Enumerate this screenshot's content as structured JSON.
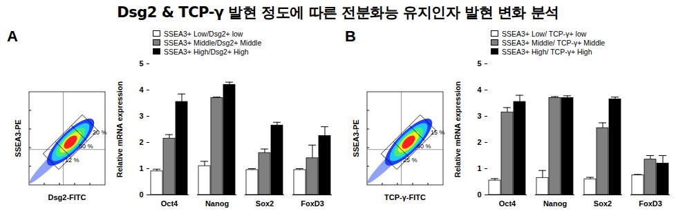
{
  "title": "Dsg2 & TCP-γ 발현 정도에 따른 전분화능 유지인자 발현 변화 분석",
  "panels": [
    {
      "label": "A",
      "flow": {
        "x_label": "Dsg2-FITC",
        "y_label": "SSEA3-PE",
        "gates": [
          "20 %",
          "50 %",
          "12 %"
        ]
      }
    },
    {
      "label": "B",
      "flow": {
        "x_label": "TCP-γ-FITC",
        "y_label": "SSEA3-PE",
        "gates": [
          "15 %",
          "40 %",
          "25 %"
        ]
      }
    }
  ],
  "chart_data": [
    {
      "type": "bar",
      "y_label": "Relative mRNA expression",
      "categories": [
        "Oct4",
        "Nanog",
        "Sox2",
        "FoxD3"
      ],
      "series": [
        {
          "name": "SSEA3+ Low/Dsg2+ low",
          "color": "#ffffff",
          "values": [
            0.9,
            1.1,
            0.95,
            0.95
          ],
          "errors": [
            0.08,
            0.18,
            0.05,
            0.05
          ]
        },
        {
          "name": "SSEA3+ Middle/Dsg2+ Middle",
          "color": "#808080",
          "values": [
            2.15,
            3.7,
            1.6,
            1.4
          ],
          "errors": [
            0.15,
            0.03,
            0.15,
            0.5
          ]
        },
        {
          "name": "SSEA3+ High/Dsg2+ High",
          "color": "#000000",
          "values": [
            3.55,
            4.2,
            2.65,
            2.25
          ],
          "errors": [
            0.3,
            0.1,
            0.12,
            0.35
          ]
        }
      ],
      "ylim": [
        0,
        5
      ],
      "yticks": [
        0,
        1,
        2,
        3,
        4,
        5
      ]
    },
    {
      "type": "bar",
      "y_label": "Relative mRNA expression",
      "categories": [
        "Oct4",
        "Nanog",
        "Sox2",
        "FoxD3"
      ],
      "series": [
        {
          "name": "SSEA3+ Low/ TCP-γ+ low",
          "color": "#ffffff",
          "values": [
            0.55,
            0.65,
            0.6,
            0.75
          ],
          "errors": [
            0.07,
            0.28,
            0.07,
            0.03
          ]
        },
        {
          "name": "SSEA3+ Middle/ TCP-γ+ Middle",
          "color": "#808080",
          "values": [
            3.15,
            3.7,
            2.55,
            1.35
          ],
          "errors": [
            0.18,
            0.05,
            0.2,
            0.15
          ]
        },
        {
          "name": "SSEA3+ High/ TCP-γ+ High",
          "color": "#000000",
          "values": [
            3.55,
            3.7,
            3.65,
            1.2
          ],
          "errors": [
            0.25,
            0.08,
            0.08,
            0.3
          ]
        }
      ],
      "ylim": [
        0,
        5
      ],
      "yticks": [
        0,
        1,
        2,
        3,
        4,
        5
      ]
    }
  ]
}
